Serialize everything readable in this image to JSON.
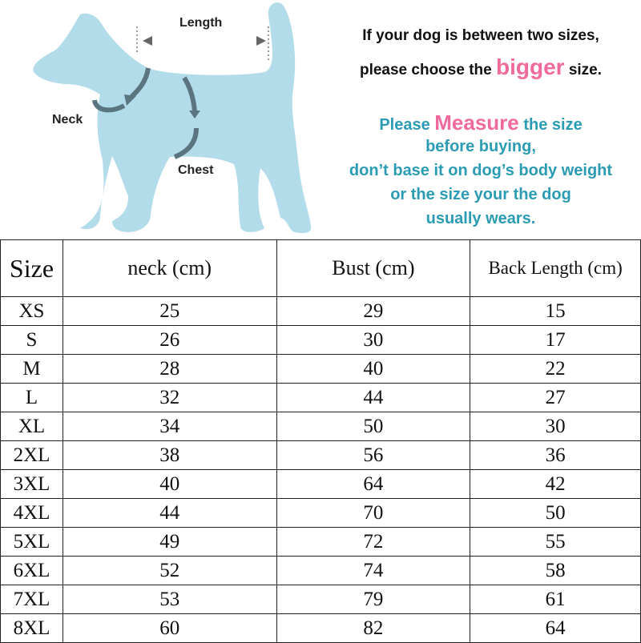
{
  "diagram": {
    "length_label": "Length",
    "neck_label": "Neck",
    "chest_label": "Chest",
    "dog_color": "#b3dceb"
  },
  "notice": {
    "line1": "If your dog is between two sizes,",
    "line2_prefix": "please choose the",
    "line2_highlight": "bigger",
    "line2_suffix": "size.",
    "line3_prefix": "Please",
    "line3_highlight": "Measure",
    "line3_suffix": "the size",
    "line4": "before buying,",
    "line5": "don’t base it on dog’s body weight",
    "line6": "or the size your the dog",
    "line7": "usually wears.",
    "teal_color": "#2b9cb3",
    "pink_color": "#f06b9c"
  },
  "table": {
    "headers": [
      "Size",
      "neck (cm)",
      "Bust (cm)",
      "Back Length (cm)"
    ],
    "rows": [
      [
        "XS",
        "25",
        "29",
        "15"
      ],
      [
        "S",
        "26",
        "30",
        "17"
      ],
      [
        "M",
        "28",
        "40",
        "22"
      ],
      [
        "L",
        "32",
        "44",
        "27"
      ],
      [
        "XL",
        "34",
        "50",
        "30"
      ],
      [
        "2XL",
        "38",
        "56",
        "36"
      ],
      [
        "3XL",
        "40",
        "64",
        "42"
      ],
      [
        "4XL",
        "44",
        "70",
        "50"
      ],
      [
        "5XL",
        "49",
        "72",
        "55"
      ],
      [
        "6XL",
        "52",
        "74",
        "58"
      ],
      [
        "7XL",
        "53",
        "79",
        "61"
      ],
      [
        "8XL",
        "60",
        "82",
        "64"
      ]
    ]
  }
}
